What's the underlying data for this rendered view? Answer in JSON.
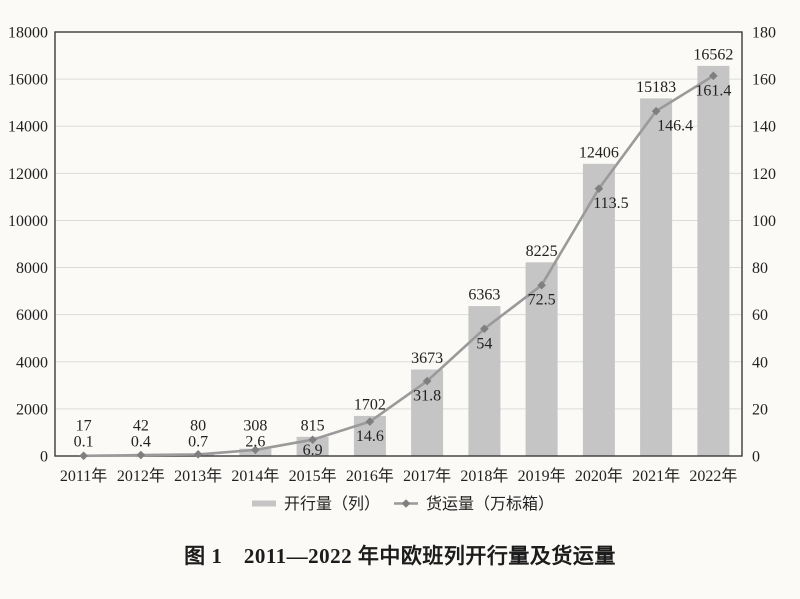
{
  "figure_caption": "图 1　2011—2022 年中欧班列开行量及货运量",
  "chart_data": {
    "type": "bar+line",
    "categories": [
      "2011年",
      "2012年",
      "2013年",
      "2014年",
      "2015年",
      "2016年",
      "2017年",
      "2018年",
      "2019年",
      "2020年",
      "2021年",
      "2022年"
    ],
    "series": [
      {
        "name": "开行量（列）",
        "type": "bar",
        "axis": "left",
        "values": [
          17,
          42,
          80,
          308,
          815,
          1702,
          3673,
          6363,
          8225,
          12406,
          15183,
          16562
        ],
        "color": "#c5c5c5"
      },
      {
        "name": "货运量（万标箱）",
        "type": "line",
        "axis": "right",
        "values": [
          0.1,
          0.4,
          0.7,
          2.6,
          6.9,
          14.6,
          31.8,
          54,
          72.5,
          113.5,
          146.4,
          161.4
        ],
        "color": "#9a9a9a",
        "marker": "diamond",
        "marker_color": "#7f7f7f"
      }
    ],
    "left_axis": {
      "min": 0,
      "max": 18000,
      "step": 2000,
      "ticks": [
        "0",
        "2000",
        "4000",
        "6000",
        "8000",
        "10000",
        "12000",
        "14000",
        "16000",
        "18000"
      ]
    },
    "right_axis": {
      "min": 0,
      "max": 180,
      "step": 20,
      "ticks": [
        "0",
        "20",
        "40",
        "60",
        "80",
        "100",
        "120",
        "140",
        "160",
        "180"
      ]
    },
    "grid": true,
    "data_labels": true,
    "legend_position": "bottom",
    "colors": {
      "background": "#fbfaf7",
      "plot_border": "#3a3a3a",
      "gridline": "#dcdcdc",
      "label_text": "#222222"
    }
  }
}
